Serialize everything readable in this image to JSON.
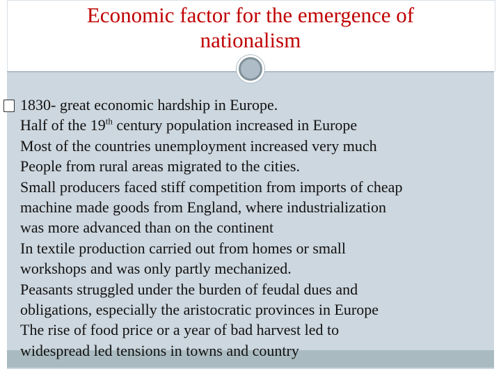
{
  "title": {
    "lines": [
      "Economic factor for the emergence of",
      "nationalism"
    ]
  },
  "bullets": [
    {
      "lines": [
        "1830- great economic hardship in Europe."
      ]
    },
    {
      "lines": [
        [
          "Half of the 19",
          "th",
          " century population increased in Europe"
        ]
      ]
    },
    {
      "lines": [
        "Most of the countries unemployment increased very much"
      ]
    },
    {
      "lines": [
        "People from rural areas migrated to the cities."
      ]
    },
    {
      "lines": [
        "Small producers faced stiff competition from imports of cheap",
        "machine made goods from England, where industrialization",
        "was more advanced than on the continent"
      ]
    },
    {
      "lines": [
        "In textile production carried out from homes or small",
        "workshops and was only partly mechanized."
      ]
    },
    {
      "lines": [
        "Peasants struggled under the burden of feudal dues and",
        "obligations, especially the aristocratic provinces in Europe"
      ]
    },
    {
      "lines": [
        "The rise of food price or a year of bad harvest led to",
        "widespread led tensions in towns and country"
      ]
    }
  ]
}
